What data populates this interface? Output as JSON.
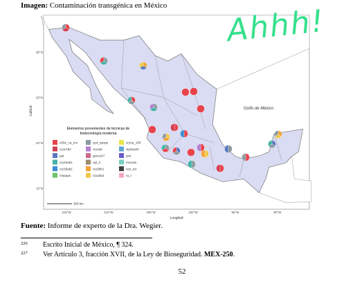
{
  "caption": {
    "label": "Imagen:",
    "text": "Contaminación transgénica en México"
  },
  "annotation": "Ahhh!",
  "map": {
    "sea_label": "Golfo de México",
    "legend": {
      "title": [
        "Elementos provenientes de técnicas de",
        "biotecnología moderna"
      ],
      "items": [
        "e35s_ca_mv",
        "cry1Ab2",
        "pat",
        "cry34ab1",
        "cry35ab1",
        "mepsps",
        "cp4_epsps",
        "cry1ab",
        "goxv247",
        "npt_ii",
        "cry3bb1",
        "cry2ab2",
        "cry1a_105",
        "vip3aa20",
        "pmi",
        "mcry3a",
        "nos_ter",
        "ru_r"
      ]
    },
    "y_axis_label": "Latitud",
    "x_axis_label": "Longitud",
    "y_ticks": [
      "30°N",
      "25°N",
      "20°N",
      "15°N"
    ],
    "x_ticks": [
      "115°W",
      "110°W",
      "105°W",
      "100°W",
      "95°W",
      "90°W"
    ],
    "scale": "300 km"
  },
  "source": {
    "label": "Fuente:",
    "text": "Informe de experto de la Dra. Wegier."
  },
  "footnotes": [
    {
      "number": "226",
      "parts": [
        "Escrito Inicial de México, ¶ 324."
      ]
    },
    {
      "number": "227",
      "parts": [
        "Ver Artículo 3, fracción XVII, de la Ley de Bioseguridad. ",
        "MEX-250",
        "."
      ]
    }
  ],
  "page_number": "52"
}
